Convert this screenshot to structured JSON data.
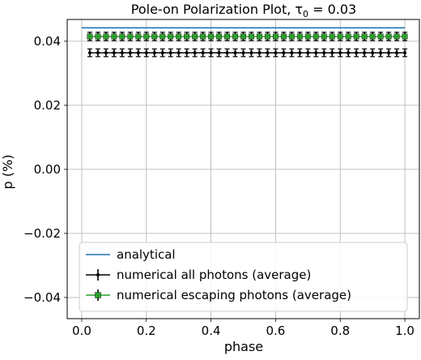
{
  "chart_data": {
    "type": "line",
    "title": "Pole-on Polarization Plot, τ",
    "title_sub": "0",
    "title_tail": " = 0.03",
    "xlabel": "phase",
    "ylabel": "p (%)",
    "xlim": [
      -0.045,
      1.045
    ],
    "ylim": [
      -0.0466,
      0.0468
    ],
    "xticks": [
      0.0,
      0.2,
      0.4,
      0.6,
      0.8,
      1.0
    ],
    "xtick_labels": [
      "0.0",
      "0.2",
      "0.4",
      "0.6",
      "0.8",
      "1.0"
    ],
    "yticks": [
      -0.04,
      -0.02,
      0.0,
      0.02,
      0.04
    ],
    "ytick_labels": [
      "−0.04",
      "−0.02",
      "0.00",
      "0.02",
      "0.04"
    ],
    "grid": true,
    "legend_position": "lower-center",
    "series": [
      {
        "name": "analytical",
        "style": "line",
        "color": "#1f77b4",
        "x": [
          0.0,
          1.0
        ],
        "y": [
          0.0442,
          0.0442
        ]
      },
      {
        "name": "numerical all photons (average)",
        "style": "errorbar-dot",
        "color": "#000000",
        "x": [
          0.025,
          0.05,
          0.075,
          0.1,
          0.125,
          0.15,
          0.175,
          0.2,
          0.225,
          0.25,
          0.275,
          0.3,
          0.325,
          0.35,
          0.375,
          0.4,
          0.425,
          0.45,
          0.475,
          0.5,
          0.525,
          0.55,
          0.575,
          0.6,
          0.625,
          0.65,
          0.675,
          0.7,
          0.725,
          0.75,
          0.775,
          0.8,
          0.825,
          0.85,
          0.875,
          0.9,
          0.925,
          0.95,
          0.975,
          1.0
        ],
        "y_value": 0.0364,
        "yerr": 0.0012
      },
      {
        "name": "numerical escaping photons (average)",
        "style": "errorbar-square",
        "color": "#2ca02c",
        "x": [
          0.025,
          0.05,
          0.075,
          0.1,
          0.125,
          0.15,
          0.175,
          0.2,
          0.225,
          0.25,
          0.275,
          0.3,
          0.325,
          0.35,
          0.375,
          0.4,
          0.425,
          0.45,
          0.475,
          0.5,
          0.525,
          0.55,
          0.575,
          0.6,
          0.625,
          0.65,
          0.675,
          0.7,
          0.725,
          0.75,
          0.775,
          0.8,
          0.825,
          0.85,
          0.875,
          0.9,
          0.925,
          0.95,
          0.975,
          1.0
        ],
        "y_value": 0.0415,
        "yerr": 0.0013
      }
    ]
  }
}
